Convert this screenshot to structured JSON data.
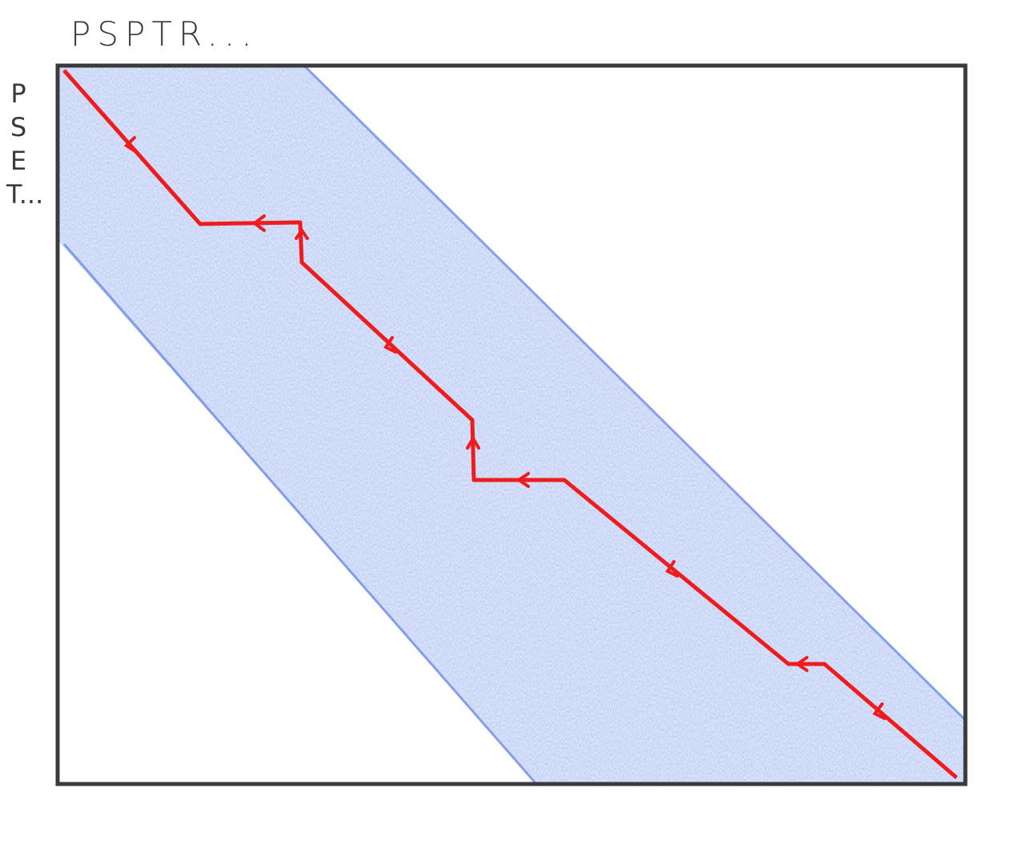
{
  "labels": {
    "top": "PSPTR...",
    "side": "PSET..."
  },
  "colors": {
    "band": "#6f8fe6",
    "path": "#ee1c1c",
    "frame": "#3a3a3a"
  }
}
